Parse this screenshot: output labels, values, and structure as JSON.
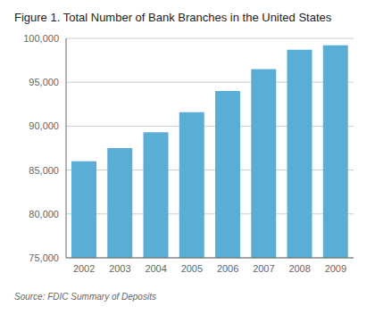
{
  "chart_data": {
    "type": "bar",
    "title": "Figure 1. Total Number of Bank Branches in the United States",
    "annotations": [
      "Source: FDIC Summary of Deposits"
    ],
    "categories": [
      "2002",
      "2003",
      "2004",
      "2005",
      "2006",
      "2007",
      "2008",
      "2009"
    ],
    "values": [
      86000,
      87500,
      89300,
      91600,
      94000,
      96500,
      98700,
      99200
    ],
    "color": "#5aadd4",
    "ylim": [
      75000,
      100000
    ],
    "yticks": [
      {
        "value": 75000,
        "label": "75,000"
      },
      {
        "value": 80000,
        "label": "80,000"
      },
      {
        "value": 85000,
        "label": "85,000"
      },
      {
        "value": 90000,
        "label": "90,000"
      },
      {
        "value": 95000,
        "label": "95,000"
      },
      {
        "value": 100000,
        "label": "100,000"
      }
    ],
    "grid": true
  }
}
